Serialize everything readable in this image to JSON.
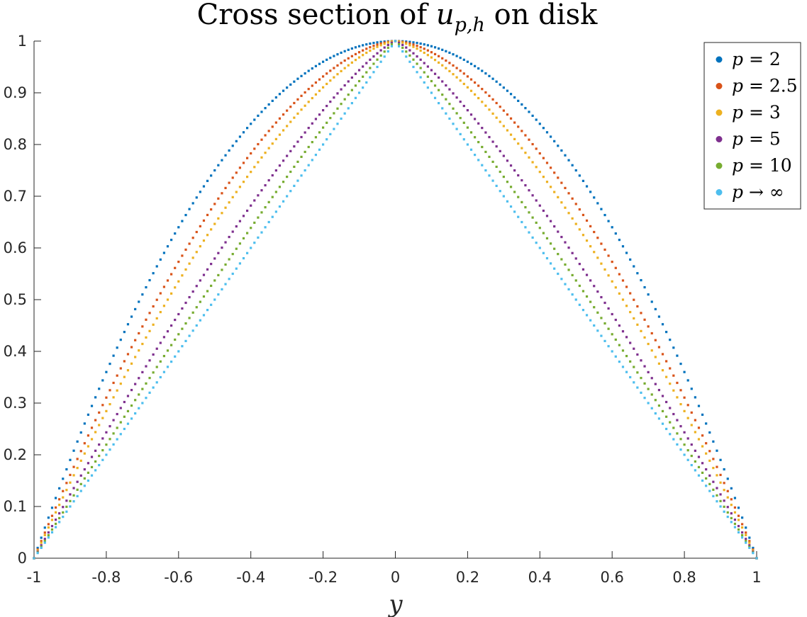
{
  "chart_data": {
    "type": "scatter",
    "title": {
      "prefix": "Cross section of ",
      "var": "u",
      "sub": "p,h",
      "suffix": " on disk"
    },
    "xlabel": "y",
    "ylabel": "",
    "xlim": [
      -1,
      1
    ],
    "ylim": [
      0,
      1
    ],
    "xticks": [
      -1,
      -0.8,
      -0.6,
      -0.4,
      -0.2,
      0,
      0.2,
      0.4,
      0.6,
      0.8,
      1
    ],
    "xtick_labels": [
      "-1",
      "-0.8",
      "-0.6",
      "-0.4",
      "-0.2",
      "0",
      "0.2",
      "0.4",
      "0.6",
      "0.8",
      "1"
    ],
    "yticks": [
      0,
      0.1,
      0.2,
      0.3,
      0.4,
      0.5,
      0.6,
      0.7,
      0.8,
      0.9,
      1
    ],
    "ytick_labels": [
      "0",
      "0.1",
      "0.2",
      "0.3",
      "0.4",
      "0.5",
      "0.6",
      "0.7",
      "0.8",
      "0.9",
      "1"
    ],
    "grid": false,
    "legend_position": "top-right",
    "sample_points_per_series": 201,
    "series": [
      {
        "name": "p = 2",
        "legend_var": "p",
        "legend_op": "=",
        "legend_val": "2",
        "p": 2,
        "color": "#0072BD"
      },
      {
        "name": "p = 2.5",
        "legend_var": "p",
        "legend_op": "=",
        "legend_val": "2.5",
        "p": 2.5,
        "color": "#D95319"
      },
      {
        "name": "p = 3",
        "legend_var": "p",
        "legend_op": "=",
        "legend_val": "3",
        "p": 3,
        "color": "#EDB120"
      },
      {
        "name": "p = 5",
        "legend_var": "p",
        "legend_op": "=",
        "legend_val": "5",
        "p": 5,
        "color": "#7E2F8E"
      },
      {
        "name": "p = 10",
        "legend_var": "p",
        "legend_op": "=",
        "legend_val": "10",
        "p": 10,
        "color": "#77AC30"
      },
      {
        "name": "p → ∞",
        "legend_var": "p",
        "legend_op": "→",
        "legend_val": "∞",
        "p": "inf",
        "color": "#4DBEEE"
      }
    ]
  }
}
